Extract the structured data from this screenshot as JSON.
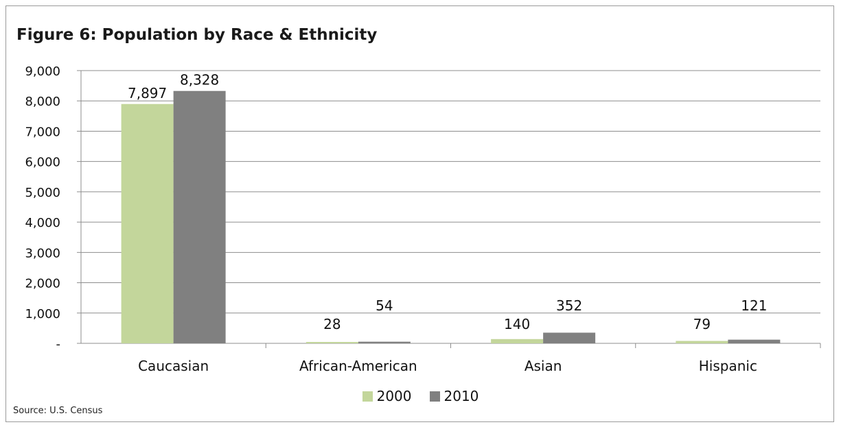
{
  "chart_data": {
    "type": "bar",
    "title": "Figure 6: Population by Race & Ethnicity",
    "categories": [
      "Caucasian",
      "African-American",
      "Asian",
      "Hispanic"
    ],
    "series": [
      {
        "name": "2000",
        "color": "#c3d69b",
        "values": [
          7897,
          28,
          140,
          79
        ],
        "labels": [
          "7,897",
          "28",
          "140",
          "79"
        ]
      },
      {
        "name": "2010",
        "color": "#808080",
        "values": [
          8328,
          54,
          352,
          121
        ],
        "labels": [
          "8,328",
          "54",
          "352",
          "121"
        ]
      }
    ],
    "yticks": [
      {
        "value": 0,
        "label": "-"
      },
      {
        "value": 1000,
        "label": "1,000"
      },
      {
        "value": 2000,
        "label": "2,000"
      },
      {
        "value": 3000,
        "label": "3,000"
      },
      {
        "value": 4000,
        "label": "4,000"
      },
      {
        "value": 5000,
        "label": "5,000"
      },
      {
        "value": 6000,
        "label": "6,000"
      },
      {
        "value": 7000,
        "label": "7,000"
      },
      {
        "value": 8000,
        "label": "8,000"
      },
      {
        "value": 9000,
        "label": "9,000"
      }
    ],
    "ylim": [
      0,
      9000
    ],
    "grid": true,
    "legend": "bottom"
  },
  "source": "Source: U.S. Census"
}
